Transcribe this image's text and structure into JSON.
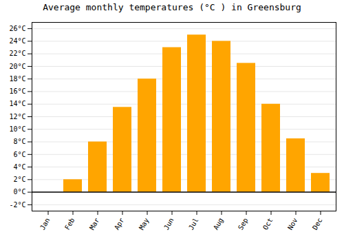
{
  "chart_data": {
    "type": "bar",
    "title": "Average monthly temperatures (°C ) in Greensburg",
    "categories": [
      "Jan",
      "Feb",
      "Mar",
      "Apr",
      "May",
      "Jun",
      "Jul",
      "Aug",
      "Sep",
      "Oct",
      "Nov",
      "Dec"
    ],
    "values": [
      0.0,
      2.0,
      8.0,
      13.5,
      18.0,
      23.0,
      25.0,
      24.0,
      20.5,
      14.0,
      8.5,
      3.0
    ],
    "color": "#FFA500",
    "ylim": [
      -3,
      27
    ],
    "yticks": [
      {
        "value": -2,
        "label": "-2°C"
      },
      {
        "value": 0,
        "label": "0°C"
      },
      {
        "value": 2,
        "label": "2°C"
      },
      {
        "value": 4,
        "label": "4°C"
      },
      {
        "value": 6,
        "label": "6°C"
      },
      {
        "value": 8,
        "label": "8°C"
      },
      {
        "value": 10,
        "label": "10°C"
      },
      {
        "value": 12,
        "label": "12°C"
      },
      {
        "value": 14,
        "label": "14°C"
      },
      {
        "value": 16,
        "label": "16°C"
      },
      {
        "value": 18,
        "label": "18°C"
      },
      {
        "value": 20,
        "label": "20°C"
      },
      {
        "value": 22,
        "label": "22°C"
      },
      {
        "value": 24,
        "label": "24°C"
      },
      {
        "value": 26,
        "label": "26°C"
      }
    ],
    "grid": true
  }
}
